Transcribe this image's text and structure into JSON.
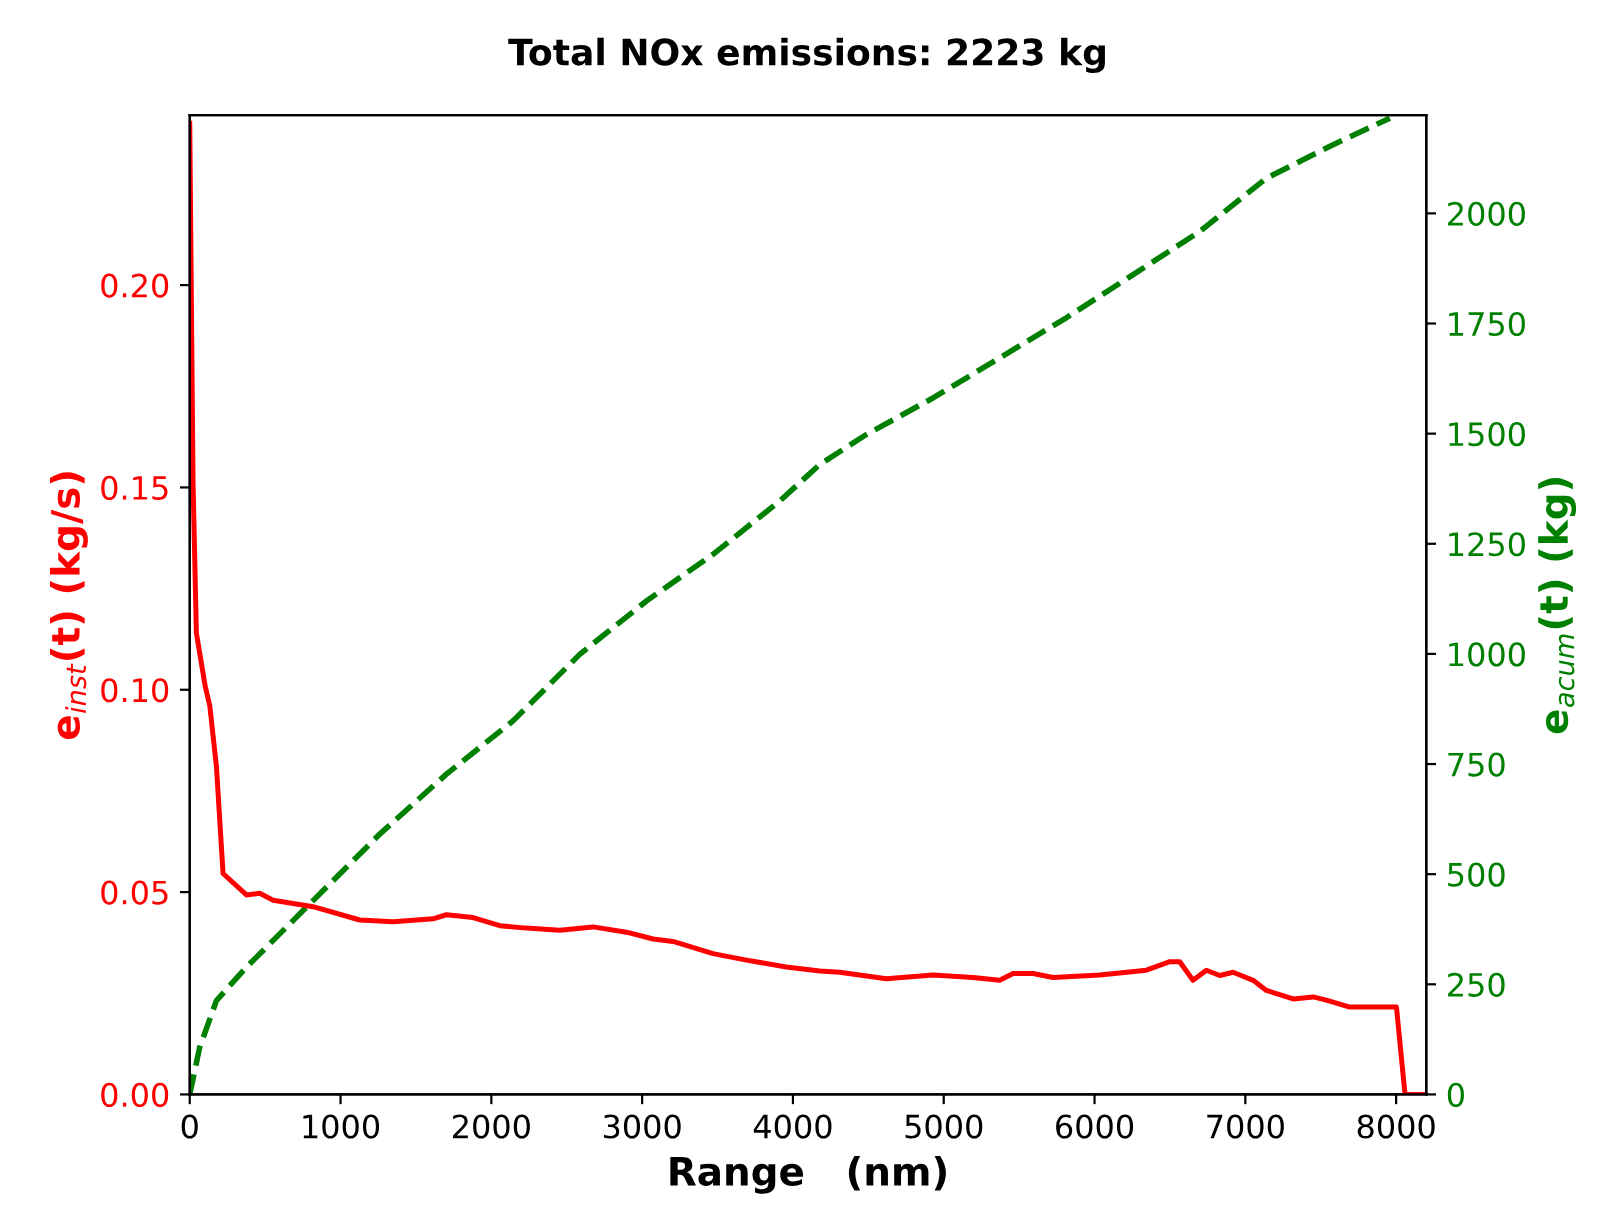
{
  "chart_data": {
    "type": "line",
    "title": "Total NOx emissions: 2223 kg",
    "xlabel": "Range   (nm)",
    "ylabel": "e$_{inst}$(t) (kg/s)",
    "y2label": "e$_{acum}$(t) (kg)",
    "xlim": [
      0,
      8200
    ],
    "xticks": [
      0,
      1000,
      2000,
      3000,
      4000,
      5000,
      6000,
      7000,
      8000
    ],
    "ylim": [
      0,
      0.242
    ],
    "yticks": [
      {
        "value": 0,
        "label": "0.00"
      },
      {
        "value": 0.05,
        "label": "0.05"
      },
      {
        "value": 0.1,
        "label": "0.10"
      },
      {
        "value": 0.15,
        "label": "0.15"
      },
      {
        "value": 0.2,
        "label": "0.20"
      }
    ],
    "y2lim": [
      0,
      2223
    ],
    "y2ticks": [
      0,
      250,
      500,
      750,
      1000,
      1250,
      1500,
      1750,
      2000
    ],
    "grid": false,
    "series": [
      {
        "color": "#ff0000",
        "line_style": "solid",
        "x": [
          0,
          22,
          44,
          102,
          133,
          177,
          221,
          376,
          464,
          553,
          818,
          1127,
          1349,
          1614,
          1702,
          1879,
          2056,
          2233,
          2454,
          2675,
          2896,
          3073,
          3205,
          3470,
          3691,
          3956,
          4178,
          4310,
          4619,
          4929,
          5195,
          5371,
          5460,
          5592,
          5725,
          6034,
          6344,
          6499,
          6565,
          6653,
          6742,
          6830,
          6919,
          7052,
          7140,
          7317,
          7449,
          7537,
          7692,
          8002,
          8059,
          8200
        ],
        "values": [
          0.24,
          0.151,
          0.114,
          0.101,
          0.096,
          0.081,
          0.0546,
          0.0493,
          0.0497,
          0.048,
          0.0464,
          0.0431,
          0.0427,
          0.0434,
          0.0444,
          0.0437,
          0.0417,
          0.0411,
          0.0406,
          0.0414,
          0.0401,
          0.0384,
          0.0378,
          0.0348,
          0.0332,
          0.0315,
          0.0305,
          0.0302,
          0.0286,
          0.0295,
          0.0289,
          0.0282,
          0.0299,
          0.0299,
          0.0289,
          0.0295,
          0.0307,
          0.0328,
          0.0328,
          0.0282,
          0.0307,
          0.0294,
          0.0302,
          0.0282,
          0.0257,
          0.0236,
          0.0241,
          0.0233,
          0.0216,
          0.0216,
          0,
          0
        ]
      },
      {
        "color": "#008000",
        "line_style": "dashed",
        "axis": "y2",
        "x": [
          0,
          66,
          177,
          376,
          818,
          1260,
          1702,
          2144,
          2586,
          3028,
          3470,
          3912,
          4178,
          4487,
          4929,
          5371,
          5813,
          6256,
          6698,
          7140,
          7582,
          7958
        ],
        "values": [
          0,
          107,
          213,
          289,
          440,
          591,
          727,
          848,
          999,
          1120,
          1226,
          1347,
          1430,
          1498,
          1581,
          1672,
          1763,
          1861,
          1959,
          2080,
          2156,
          2216
        ]
      }
    ]
  }
}
